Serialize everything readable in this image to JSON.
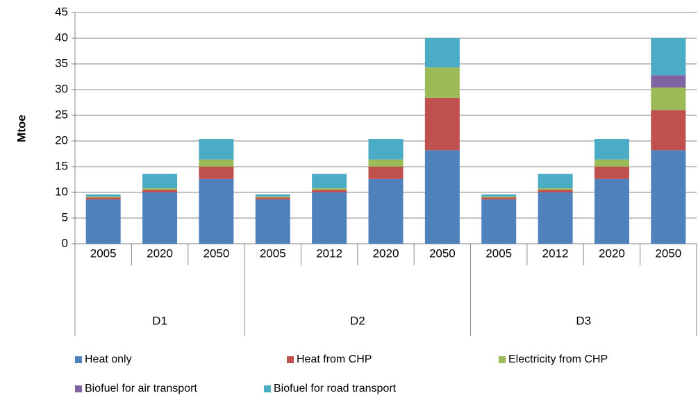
{
  "chart_data": {
    "type": "stacked_bar",
    "y_label": "Mtoe",
    "groups": [
      {
        "label": "D1",
        "categories": [
          "2005",
          "2020",
          "2050"
        ]
      },
      {
        "label": "D2",
        "categories": [
          "2005",
          "2012",
          "2020",
          "2050"
        ]
      },
      {
        "label": "D3",
        "categories": [
          "2005",
          "2012",
          "2020",
          "2050"
        ]
      }
    ],
    "series": [
      {
        "name": "Heat only",
        "color": "#4f81bd",
        "values": [
          8.6,
          10.0,
          12.6,
          8.6,
          10.0,
          12.6,
          18.2,
          8.6,
          10.0,
          12.6,
          18.2
        ]
      },
      {
        "name": "Heat from CHP",
        "color": "#c0504d",
        "values": [
          0.4,
          0.5,
          2.4,
          0.4,
          0.5,
          2.4,
          10.2,
          0.4,
          0.5,
          2.4,
          7.8
        ]
      },
      {
        "name": "Electricity from CHP",
        "color": "#9bbb59",
        "values": [
          0.2,
          0.3,
          1.4,
          0.2,
          0.3,
          1.4,
          5.9,
          0.2,
          0.3,
          1.4,
          4.4
        ]
      },
      {
        "name": "Biofuel for air transport",
        "color": "#8064a2",
        "values": [
          0,
          0,
          0,
          0,
          0,
          0,
          0,
          0,
          0,
          0,
          2.4
        ]
      },
      {
        "name": "Biofuel for road transport",
        "color": "#4bacc6",
        "values": [
          0.4,
          2.8,
          4.0,
          0.4,
          2.8,
          4.0,
          5.7,
          0.4,
          2.8,
          4.0,
          7.2
        ]
      }
    ],
    "ylim": [
      0,
      45
    ],
    "yticks": [
      0,
      5,
      10,
      15,
      20,
      25,
      30,
      35,
      40,
      45
    ],
    "grid": true
  }
}
